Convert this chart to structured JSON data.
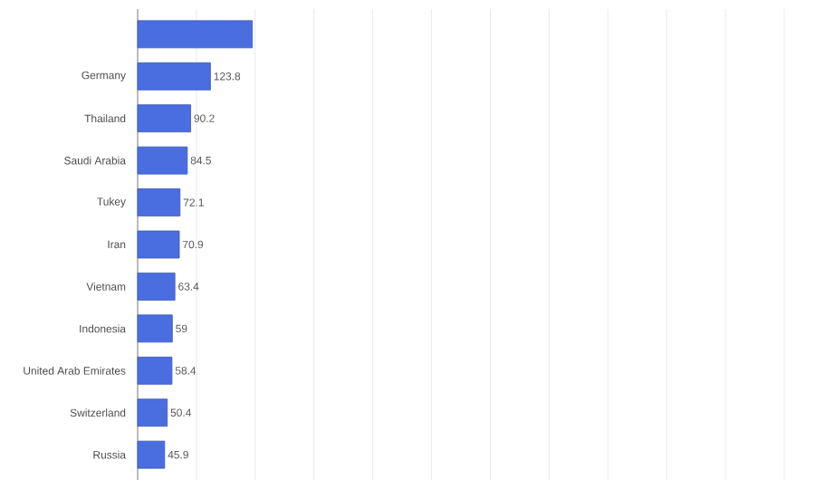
{
  "chart_data": {
    "type": "bar",
    "orientation": "horizontal",
    "categories": [
      null,
      "Germany",
      "Thailand",
      "Saudi Arabia",
      "Tukey",
      "Iran",
      "Vietnam",
      "Indonesia",
      "United Arab Emirates",
      "Switzerland",
      "Russia"
    ],
    "values": [
      195,
      123.8,
      90.2,
      84.5,
      72.1,
      70.9,
      63.4,
      59,
      58.4,
      50.4,
      45.9
    ],
    "value_labels": [
      null,
      "123.8",
      "90.2",
      "84.5",
      "72.1",
      "70.9",
      "63.4",
      "59",
      "58.4",
      "50.4",
      "45.9"
    ],
    "color": "#4a6ee0",
    "xlim": [
      0,
      1100
    ],
    "xticks": [
      {
        "value": 0,
        "label": null
      },
      {
        "value": 100,
        "label": null
      },
      {
        "value": 200,
        "label": null
      },
      {
        "value": 300,
        "label": null
      },
      {
        "value": 400,
        "label": null
      },
      {
        "value": 500,
        "label": null
      },
      {
        "value": 600,
        "label": null
      },
      {
        "value": 700,
        "label": null
      },
      {
        "value": 800,
        "label": null
      },
      {
        "value": 900,
        "label": null
      },
      {
        "value": 1000,
        "label": null
      },
      {
        "value": 1100,
        "label": null
      }
    ],
    "grid": "x",
    "tick_labels": "y"
  }
}
